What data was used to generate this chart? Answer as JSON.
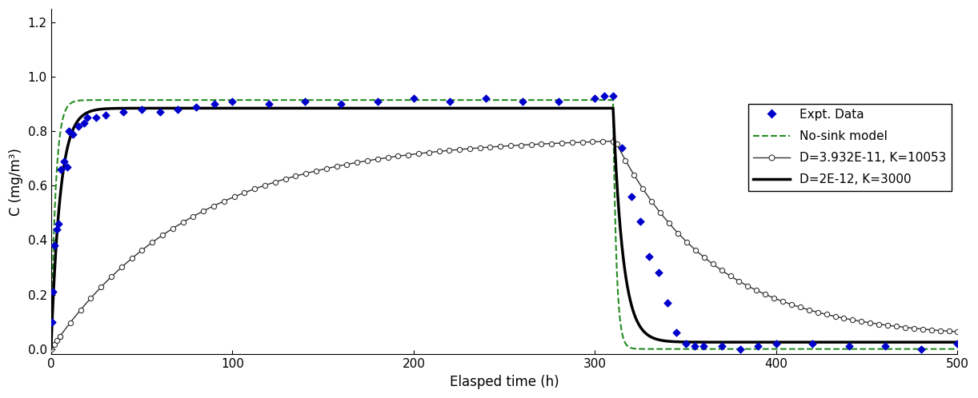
{
  "title": "",
  "xlabel": "Elasped time (h)",
  "ylabel": "C (mg/m³)",
  "xlim": [
    0,
    500
  ],
  "ylim": [
    -0.02,
    1.25
  ],
  "yticks": [
    0.0,
    0.2,
    0.4,
    0.6,
    0.8,
    1.0,
    1.2
  ],
  "xticks": [
    0,
    100,
    200,
    300,
    400,
    500
  ],
  "source_on_time": 310,
  "no_sink_level": 0.915,
  "bold_line_plateau": 0.885,
  "thin_line_plateau": 0.78,
  "bold_tau_rise": 5.0,
  "bold_tau_fall": 5.5,
  "bold_residual": 0.025,
  "thin_tau_rise": 80.0,
  "thin_tau_fall": 55.0,
  "thin_residual": 0.04,
  "nosink_tau_rise": 2.5,
  "nosink_tau_fall": 1.8,
  "expt_data": [
    [
      0.5,
      0.1
    ],
    [
      1.0,
      0.21
    ],
    [
      2.0,
      0.38
    ],
    [
      3.0,
      0.44
    ],
    [
      4.0,
      0.46
    ],
    [
      5.5,
      0.66
    ],
    [
      7.0,
      0.69
    ],
    [
      9.0,
      0.67
    ],
    [
      10.0,
      0.8
    ],
    [
      12.0,
      0.79
    ],
    [
      15.0,
      0.82
    ],
    [
      18.0,
      0.83
    ],
    [
      20.0,
      0.85
    ],
    [
      25.0,
      0.85
    ],
    [
      30.0,
      0.86
    ],
    [
      40.0,
      0.87
    ],
    [
      50.0,
      0.88
    ],
    [
      60.0,
      0.87
    ],
    [
      70.0,
      0.88
    ],
    [
      80.0,
      0.89
    ],
    [
      90.0,
      0.9
    ],
    [
      100.0,
      0.91
    ],
    [
      120.0,
      0.9
    ],
    [
      140.0,
      0.91
    ],
    [
      160.0,
      0.9
    ],
    [
      180.0,
      0.91
    ],
    [
      200.0,
      0.92
    ],
    [
      220.0,
      0.91
    ],
    [
      240.0,
      0.92
    ],
    [
      260.0,
      0.91
    ],
    [
      280.0,
      0.91
    ],
    [
      300.0,
      0.92
    ],
    [
      305.0,
      0.93
    ],
    [
      310.0,
      0.93
    ],
    [
      315.0,
      0.74
    ],
    [
      320.0,
      0.56
    ],
    [
      325.0,
      0.47
    ],
    [
      330.0,
      0.34
    ],
    [
      335.0,
      0.28
    ],
    [
      340.0,
      0.17
    ],
    [
      345.0,
      0.06
    ],
    [
      350.0,
      0.02
    ],
    [
      355.0,
      0.01
    ],
    [
      360.0,
      0.01
    ],
    [
      370.0,
      0.01
    ],
    [
      380.0,
      0.0
    ],
    [
      390.0,
      0.01
    ],
    [
      400.0,
      0.02
    ],
    [
      420.0,
      0.02
    ],
    [
      440.0,
      0.01
    ],
    [
      460.0,
      0.01
    ],
    [
      480.0,
      0.0
    ],
    [
      500.0,
      0.02
    ]
  ],
  "expt_color": "#0000cc",
  "no_sink_color": "#228B22",
  "thin_model_color": "#333333",
  "bold_model_color": "#000000",
  "legend_labels": [
    "Expt. Data",
    "No-sink model",
    "D=3.932E-11, K=10053",
    "D=2E-12, K=3000"
  ]
}
